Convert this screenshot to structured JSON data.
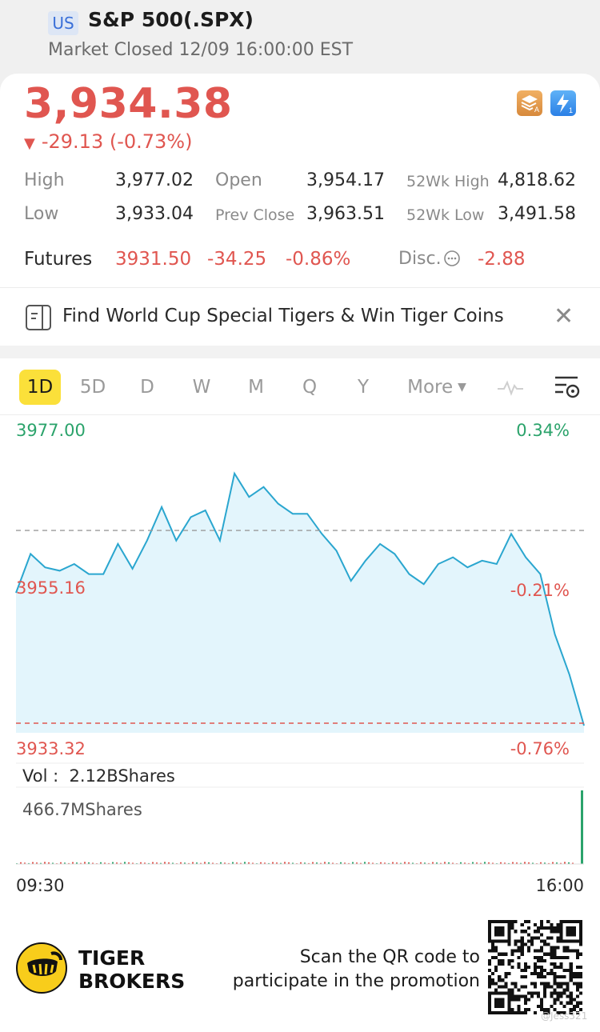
{
  "header": {
    "market_badge": "US",
    "title": "S&P 500(.SPX)",
    "status": "Market Closed 12/09 16:00:00 EST"
  },
  "quote": {
    "price": "3,934.38",
    "change": "-29.13 (-0.73%)",
    "stats": {
      "high_label": "High",
      "high": "3,977.02",
      "low_label": "Low",
      "low": "3,933.04",
      "open_label": "Open",
      "open": "3,954.17",
      "prev_close_label": "Prev Close",
      "prev_close": "3,963.51",
      "wk52_high_label": "52Wk High",
      "wk52_high": "4,818.62",
      "wk52_low_label": "52Wk Low",
      "wk52_low": "3,491.58"
    },
    "futures": {
      "label": "Futures",
      "price": "3931.50",
      "change": "-34.25",
      "pct": "-0.86%",
      "disc_label": "Disc.",
      "disc_value": "-2.88"
    }
  },
  "promo_banner": {
    "text": "Find World Cup Special Tigers & Win Tiger Coins",
    "close": "✕"
  },
  "tabs": {
    "items": [
      {
        "label": "1D",
        "active": true
      },
      {
        "label": "5D"
      },
      {
        "label": "D"
      },
      {
        "label": "W"
      },
      {
        "label": "M"
      },
      {
        "label": "Q"
      },
      {
        "label": "Y"
      }
    ],
    "more_label": "More"
  },
  "chart": {
    "top_price": "3977.00",
    "top_pct": "0.34%",
    "mid_price": "3955.16",
    "mid_pct": "-0.21%",
    "bottom_price": "3933.32",
    "bottom_pct": "-0.76%",
    "volume_label": "Vol :",
    "volume_value": "2.12BShares",
    "volume_max": "466.7MShares",
    "time_start": "09:30",
    "time_end": "16:00"
  },
  "chart_data": {
    "type": "area",
    "x_range": [
      "09:30",
      "16:00"
    ],
    "ylim": [
      3933.32,
      3977.0
    ],
    "reference_line": 3963.51,
    "mid_value": 3955.16,
    "colors": {
      "line": "#2aa6cf",
      "fill": "#e3f5fc",
      "up": "#2ba36b",
      "down": "#e05650"
    },
    "x": [
      "09:30",
      "09:40",
      "09:50",
      "10:00",
      "10:10",
      "10:20",
      "10:30",
      "10:40",
      "10:50",
      "11:00",
      "11:10",
      "11:20",
      "11:30",
      "11:40",
      "11:50",
      "12:00",
      "12:10",
      "12:20",
      "12:30",
      "12:40",
      "12:50",
      "13:00",
      "13:10",
      "13:20",
      "13:30",
      "13:40",
      "13:50",
      "14:00",
      "14:10",
      "14:20",
      "14:30",
      "14:40",
      "14:50",
      "15:00",
      "15:10",
      "15:20",
      "15:30",
      "15:40",
      "15:50",
      "16:00"
    ],
    "y": [
      3954.2,
      3960.0,
      3958.0,
      3957.5,
      3958.5,
      3957.0,
      3957.0,
      3961.5,
      3957.8,
      3962.0,
      3967.0,
      3962.0,
      3965.5,
      3966.5,
      3962.0,
      3972.0,
      3968.5,
      3970.0,
      3967.5,
      3966.0,
      3966.0,
      3963.0,
      3960.5,
      3956.0,
      3959.0,
      3961.5,
      3960.0,
      3957.0,
      3955.5,
      3958.5,
      3959.5,
      3958.0,
      3959.0,
      3958.5,
      3963.0,
      3959.5,
      3957.0,
      3948.0,
      3942.0,
      3934.4
    ]
  },
  "volume_chart": {
    "max_value_text": "466.7MShares",
    "final_bar_fraction": 1.0,
    "baseline_fraction": 0.02
  },
  "footer": {
    "brand_line1": "TIGER",
    "brand_line2": "BROKERS",
    "scan_line1": "Scan the QR code to",
    "scan_line2": "participate in the promotion",
    "watermark": "@Jess321"
  }
}
